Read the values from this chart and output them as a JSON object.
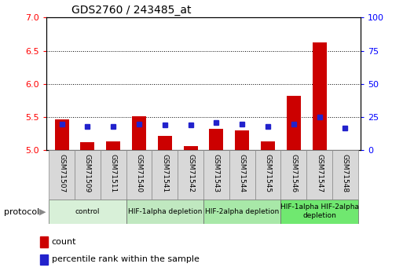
{
  "title": "GDS2760 / 243485_at",
  "samples": [
    "GSM71507",
    "GSM71509",
    "GSM71511",
    "GSM71540",
    "GSM71541",
    "GSM71542",
    "GSM71543",
    "GSM71544",
    "GSM71545",
    "GSM71546",
    "GSM71547",
    "GSM71548"
  ],
  "count_values": [
    5.47,
    5.12,
    5.14,
    5.52,
    5.22,
    5.07,
    5.32,
    5.3,
    5.14,
    5.82,
    6.63,
    5.01
  ],
  "percentile_values": [
    20,
    18,
    18,
    20,
    19,
    19,
    21,
    20,
    18,
    20,
    25,
    17
  ],
  "ylim_left": [
    5.0,
    7.0
  ],
  "ylim_right": [
    0,
    100
  ],
  "yticks_left": [
    5.0,
    5.5,
    6.0,
    6.5,
    7.0
  ],
  "yticks_right": [
    0,
    25,
    50,
    75,
    100
  ],
  "bar_color": "#cc0000",
  "dot_color": "#2222cc",
  "grid_color": "#000000",
  "protocol_groups": [
    {
      "label": "control",
      "start": 0,
      "end": 2,
      "color": "#d8f0d8"
    },
    {
      "label": "HIF-1alpha depletion",
      "start": 3,
      "end": 5,
      "color": "#c0e8c0"
    },
    {
      "label": "HIF-2alpha depletion",
      "start": 6,
      "end": 8,
      "color": "#a8e8a8"
    },
    {
      "label": "HIF-1alpha HIF-2alpha\ndepletion",
      "start": 9,
      "end": 11,
      "color": "#70e870"
    }
  ],
  "legend_count_label": "count",
  "legend_percentile_label": "percentile rank within the sample",
  "sample_box_color": "#d8d8d8",
  "protocol_label": "protocol"
}
